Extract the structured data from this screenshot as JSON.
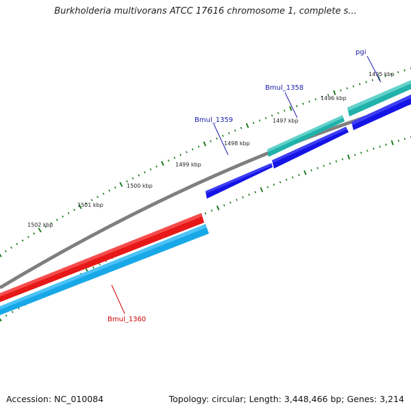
{
  "title": "Burkholderia multivorans ATCC 17616 chromosome 1, complete s...",
  "footer": {
    "accession": "Accession: NC_010084",
    "summary": "Topology: circular; Length: 3,448,466 bp; Genes: 3,214"
  },
  "colors": {
    "backbone": "#7f7f7f",
    "tick": "#1e7a1e",
    "forward_label": "#1a1aaa",
    "reverse_label": "#cc0000"
  },
  "scale": {
    "unit": "kbp",
    "labels": [
      "1495 kbp",
      "1496 kbp",
      "1497 kbp",
      "1498 kbp",
      "1499 kbp",
      "1500 kbp",
      "1501 kbp",
      "1502 kbp"
    ]
  },
  "genes": [
    {
      "name": "pgi",
      "strand": "+",
      "color": "#20b2aa",
      "label_color": "#1a1aaa"
    },
    {
      "name": "Bmul_1358",
      "strand": "+",
      "color": "#20b2aa",
      "label_color": "#1a1aaa"
    },
    {
      "name": "Bmul_1359",
      "strand": "+",
      "color": "#1414e6",
      "label_color": "#1a1aaa"
    },
    {
      "name": "Bmul_1360",
      "strand": "-",
      "color": "#e81818",
      "label_color": "#cc0000"
    }
  ]
}
